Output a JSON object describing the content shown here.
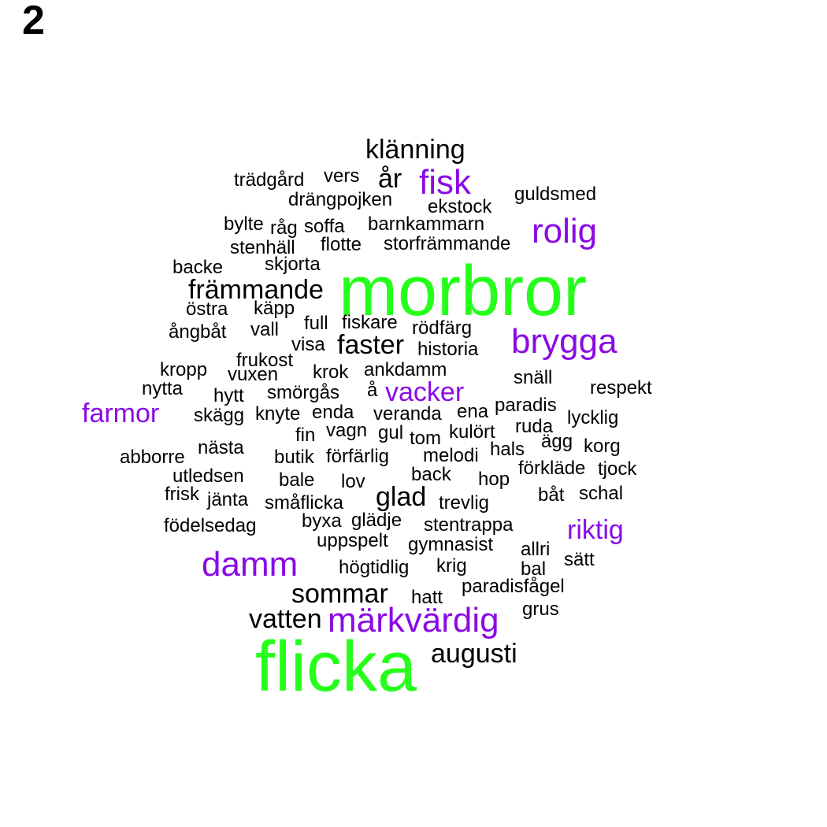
{
  "panel_label": "2",
  "colors": {
    "tier0": "#000000",
    "tier1": "#8a0ae6",
    "tier2": "#26ff1c"
  },
  "words": [
    "klänning",
    "år",
    "fisk",
    "trädgård",
    "vers",
    "drängpojken",
    "guldsmed",
    "ekstock",
    "bylte",
    "råg",
    "soffa",
    "barnkammarn",
    "rolig",
    "stenhäll",
    "flotte",
    "storfrämmande",
    "backe",
    "skjorta",
    "morbror",
    "främmande",
    "östra",
    "käpp",
    "full",
    "fiskare",
    "rödfärg",
    "ångbåt",
    "vall",
    "visa",
    "faster",
    "brygga",
    "historia",
    "frukost",
    "kropp",
    "vuxen",
    "krok",
    "ankdamm",
    "snäll",
    "nytta",
    "hytt",
    "smörgås",
    "å",
    "vacker",
    "respekt",
    "farmor",
    "skägg",
    "knyte",
    "enda",
    "veranda",
    "ena",
    "paradis",
    "lycklig",
    "fin",
    "vagn",
    "gul",
    "tom",
    "kulört",
    "ruda",
    "abborre",
    "nästa",
    "butik",
    "förfärlig",
    "melodi",
    "hals",
    "ägg",
    "korg",
    "utledsen",
    "back",
    "hop",
    "förkläde",
    "tjock",
    "bale",
    "lov",
    "frisk",
    "jänta",
    "småflicka",
    "glad",
    "trevlig",
    "båt",
    "schal",
    "födelsedag",
    "byxa",
    "glädje",
    "stentrappa",
    "riktig",
    "uppspelt",
    "gymnasist",
    "allri",
    "damm",
    "sätt",
    "högtidlig",
    "krig",
    "bal",
    "sommar",
    "hatt",
    "paradisfågel",
    "grus",
    "vatten",
    "märkvärdig",
    "augusti",
    "flicka"
  ]
}
